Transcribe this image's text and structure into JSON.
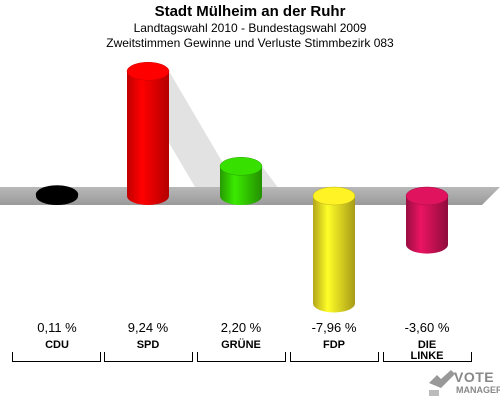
{
  "header": {
    "title": "Stadt Mülheim an der Ruhr",
    "subtitle1": "Landtagswahl 2010 - Bundestagswahl 2009",
    "subtitle2": "Zweitstimmen Gewinne und Verluste Stimmbezirk 083"
  },
  "chart_data": {
    "type": "bar",
    "categories": [
      "CDU",
      "SPD",
      "GRÜNE",
      "FDP",
      "DIE LINKE"
    ],
    "category_lines": [
      [
        "CDU"
      ],
      [
        "SPD"
      ],
      [
        "GRÜNE"
      ],
      [
        "FDP"
      ],
      [
        "DIE",
        "LINKE"
      ]
    ],
    "values": [
      0.11,
      9.24,
      2.2,
      -7.96,
      -3.6
    ],
    "value_labels": [
      "0,11 %",
      "9,24 %",
      "2,20 %",
      "-7,96 %",
      "-3,60 %"
    ],
    "colors": [
      "#000000",
      "#ff0000",
      "#33cc00",
      "#eedd22",
      "#cc1155"
    ],
    "ylim": [
      -9,
      10
    ],
    "grid": false
  },
  "logo": {
    "vote": "VOTE",
    "manager": "MANAGER"
  }
}
